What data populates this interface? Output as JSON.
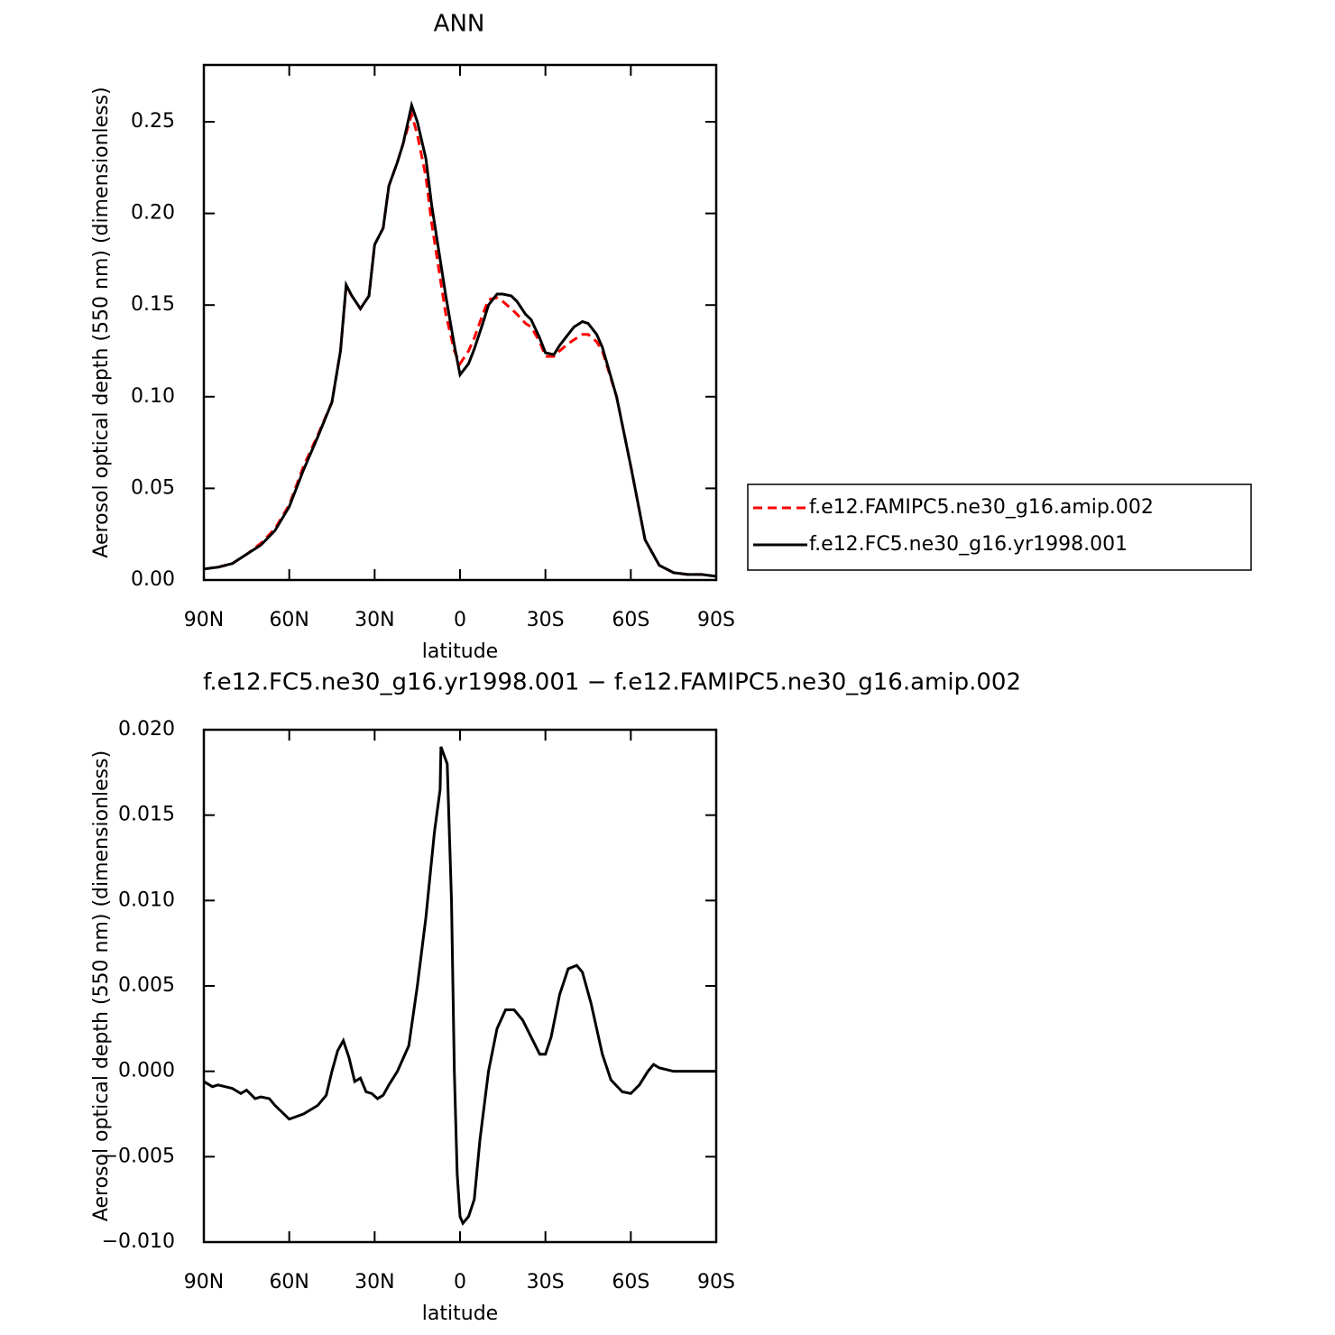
{
  "chart_data": [
    {
      "type": "line",
      "title": "ANN",
      "xlabel": "latitude",
      "ylabel": "Aerosol optical depth (550 nm) (dimensionless)",
      "x": [
        90,
        85,
        80,
        75,
        70,
        65,
        60,
        55,
        50,
        45,
        42,
        40,
        38,
        35,
        32,
        30,
        27,
        25,
        22,
        20,
        17,
        15,
        12,
        10,
        7,
        5,
        2,
        0,
        -3,
        -5,
        -8,
        -10,
        -13,
        -15,
        -18,
        -20,
        -23,
        -25,
        -28,
        -30,
        -33,
        -35,
        -38,
        -40,
        -43,
        -45,
        -48,
        -50,
        -55,
        -60,
        -65,
        -70,
        -75,
        -80,
        -85,
        -90
      ],
      "series": [
        {
          "name": "f.e12.FAMIPC5.ne30_g16.amip.002",
          "color": "#ff0000",
          "style": "dashed",
          "values": [
            0.006,
            0.007,
            0.009,
            0.014,
            0.02,
            0.028,
            0.041,
            0.062,
            0.079,
            0.097,
            0.125,
            0.16,
            0.155,
            0.148,
            0.155,
            0.183,
            0.192,
            0.215,
            0.228,
            0.238,
            0.254,
            0.243,
            0.22,
            0.195,
            0.165,
            0.145,
            0.125,
            0.118,
            0.125,
            0.132,
            0.145,
            0.153,
            0.154,
            0.152,
            0.148,
            0.145,
            0.14,
            0.138,
            0.13,
            0.122,
            0.122,
            0.125,
            0.129,
            0.131,
            0.134,
            0.134,
            0.13,
            0.125,
            0.1,
            0.062,
            0.022,
            0.008,
            0.004,
            0.003,
            0.003,
            0.002
          ]
        },
        {
          "name": "f.e12.FC5.ne30_g16.yr1998.001",
          "color": "#000000",
          "style": "solid",
          "values": [
            0.006,
            0.007,
            0.009,
            0.014,
            0.019,
            0.027,
            0.04,
            0.06,
            0.078,
            0.097,
            0.125,
            0.161,
            0.155,
            0.148,
            0.155,
            0.183,
            0.192,
            0.215,
            0.228,
            0.238,
            0.259,
            0.25,
            0.23,
            0.205,
            0.175,
            0.155,
            0.128,
            0.112,
            0.118,
            0.126,
            0.14,
            0.15,
            0.156,
            0.156,
            0.155,
            0.152,
            0.145,
            0.142,
            0.132,
            0.124,
            0.123,
            0.128,
            0.134,
            0.138,
            0.141,
            0.14,
            0.134,
            0.127,
            0.1,
            0.062,
            0.022,
            0.008,
            0.004,
            0.003,
            0.003,
            0.002
          ]
        }
      ],
      "xlim": [
        90,
        -90
      ],
      "xticks": [
        {
          "value": 90,
          "label": "90N"
        },
        {
          "value": 60,
          "label": "60N"
        },
        {
          "value": 30,
          "label": "30N"
        },
        0,
        {
          "value": -30,
          "label": "30S"
        },
        {
          "value": -60,
          "label": "60S"
        },
        {
          "value": -90,
          "label": "90S"
        }
      ],
      "ylim": [
        0,
        0.281
      ],
      "yticks": [
        {
          "value": 0,
          "label": "0.00"
        },
        0.05,
        {
          "value": 0.1,
          "label": "0.10"
        },
        0.15,
        {
          "value": 0.2,
          "label": "0.20"
        },
        0.25
      ],
      "legend": "right"
    },
    {
      "type": "line",
      "title": "f.e12.FC5.ne30_g16.yr1998.001 − f.e12.FAMIPC5.ne30_g16.amip.002",
      "xlabel": "latitude",
      "ylabel": "Aerosol optical depth (550 nm) (dimensionless)",
      "x": [
        90,
        87,
        85,
        80,
        77,
        75,
        72,
        70,
        67,
        65,
        60,
        55,
        50,
        47,
        45,
        43,
        41,
        39,
        37,
        35,
        33,
        31,
        29,
        27,
        25,
        22,
        18,
        15,
        12,
        9,
        7,
        6.7,
        4.5,
        3,
        2,
        1,
        0,
        -1,
        -3,
        -5,
        -7,
        -10,
        -13,
        -16,
        -19,
        -22,
        -25,
        -28,
        -30,
        -32,
        -35,
        -38,
        -41,
        -43,
        -46,
        -50,
        -53,
        -57,
        -60,
        -63,
        -66,
        -68,
        -70,
        -75,
        -80,
        -85,
        -90
      ],
      "series": [
        {
          "color": "#000000",
          "style": "solid",
          "values": [
            -0.0006,
            -0.0009,
            -0.0008,
            -0.001,
            -0.0013,
            -0.0011,
            -0.0016,
            -0.0015,
            -0.0016,
            -0.002,
            -0.0028,
            -0.0025,
            -0.002,
            -0.0014,
            0,
            0.0012,
            0.0018,
            0.0008,
            -0.0006,
            -0.0004,
            -0.0012,
            -0.0013,
            -0.0016,
            -0.0014,
            -0.0008,
            0,
            0.0015,
            0.005,
            0.009,
            0.014,
            0.0165,
            0.019,
            0.018,
            0.01,
            0,
            -0.006,
            -0.0085,
            -0.0089,
            -0.0085,
            -0.0075,
            -0.004,
            0,
            0.0025,
            0.0036,
            0.0036,
            0.003,
            0.002,
            0.001,
            0.001,
            0.002,
            0.0045,
            0.006,
            0.0062,
            0.0058,
            0.004,
            0.001,
            -0.0005,
            -0.0012,
            -0.0013,
            -0.0008,
            0,
            0.0004,
            0.0002,
            0,
            0,
            0,
            0
          ]
        }
      ],
      "xlim": [
        90,
        -90
      ],
      "xticks": [
        {
          "value": 90,
          "label": "90N"
        },
        {
          "value": 60,
          "label": "60N"
        },
        {
          "value": 30,
          "label": "30N"
        },
        0,
        {
          "value": -30,
          "label": "30S"
        },
        {
          "value": -60,
          "label": "60S"
        },
        {
          "value": -90,
          "label": "90S"
        }
      ],
      "ylim": [
        -0.01,
        0.02
      ],
      "yticks": [
        {
          "value": -0.01,
          "label": "−0.010"
        },
        {
          "value": -0.005,
          "label": "−0.005"
        },
        {
          "value": 0,
          "label": "0.000"
        },
        0.005,
        {
          "value": 0.01,
          "label": "0.010"
        },
        0.015,
        {
          "value": 0.02,
          "label": "0.020"
        }
      ]
    }
  ]
}
